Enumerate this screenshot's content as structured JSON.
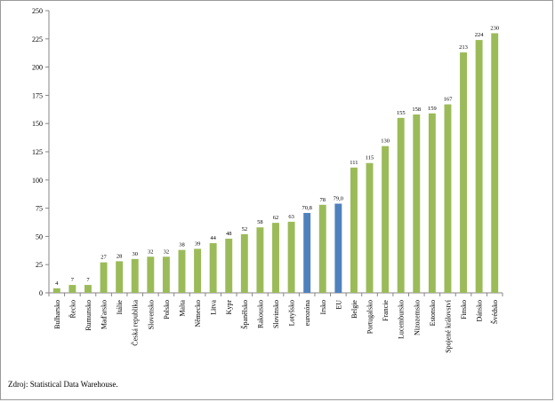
{
  "chart_data": {
    "type": "bar",
    "title": "",
    "xlabel": "",
    "ylabel": "",
    "ylim": [
      0,
      250
    ],
    "yticks": [
      0,
      25,
      50,
      75,
      100,
      125,
      150,
      175,
      200,
      225,
      250
    ],
    "grid": false,
    "legend": "none",
    "categories": [
      "Bulharsko",
      "Řecko",
      "Rumunsko",
      "Maďarsko",
      "Itálie",
      "Česká republika",
      "Slovensko",
      "Polsko",
      "Malta",
      "Německo",
      "Litva",
      "Kypr",
      "Španělsko",
      "Rakousko",
      "Slovinsko",
      "Lotyšsko",
      "eurozóna",
      "Irsko",
      "EU",
      "Belgie",
      "Portugalsko",
      "Francie",
      "Lucembursko",
      "Nizozemsko",
      "Estonsko",
      "Spojené království",
      "Finsko",
      "Dánsko",
      "Švédsko"
    ],
    "values": [
      4,
      7,
      7,
      27,
      28,
      30,
      32,
      32,
      38,
      39,
      44,
      48,
      52,
      58,
      62,
      63,
      70.8,
      78,
      79.0,
      111,
      115,
      130,
      155,
      158,
      159,
      167,
      213,
      224,
      230
    ],
    "value_labels": [
      "4",
      "7",
      "7",
      "27",
      "28",
      "30",
      "32",
      "32",
      "38",
      "39",
      "44",
      "48",
      "52",
      "58",
      "62",
      "63",
      "70,8",
      "78",
      "79,0",
      "111",
      "115",
      "130",
      "155",
      "158",
      "159",
      "167",
      "213",
      "224",
      "230"
    ],
    "highlighted": [
      "eurozóna",
      "EU"
    ],
    "colors": {
      "default": "#9bbb59",
      "highlight": "#4f81bd",
      "axis": "#868686"
    }
  },
  "source_note": "Zdroj: Statistical Data Warehouse."
}
